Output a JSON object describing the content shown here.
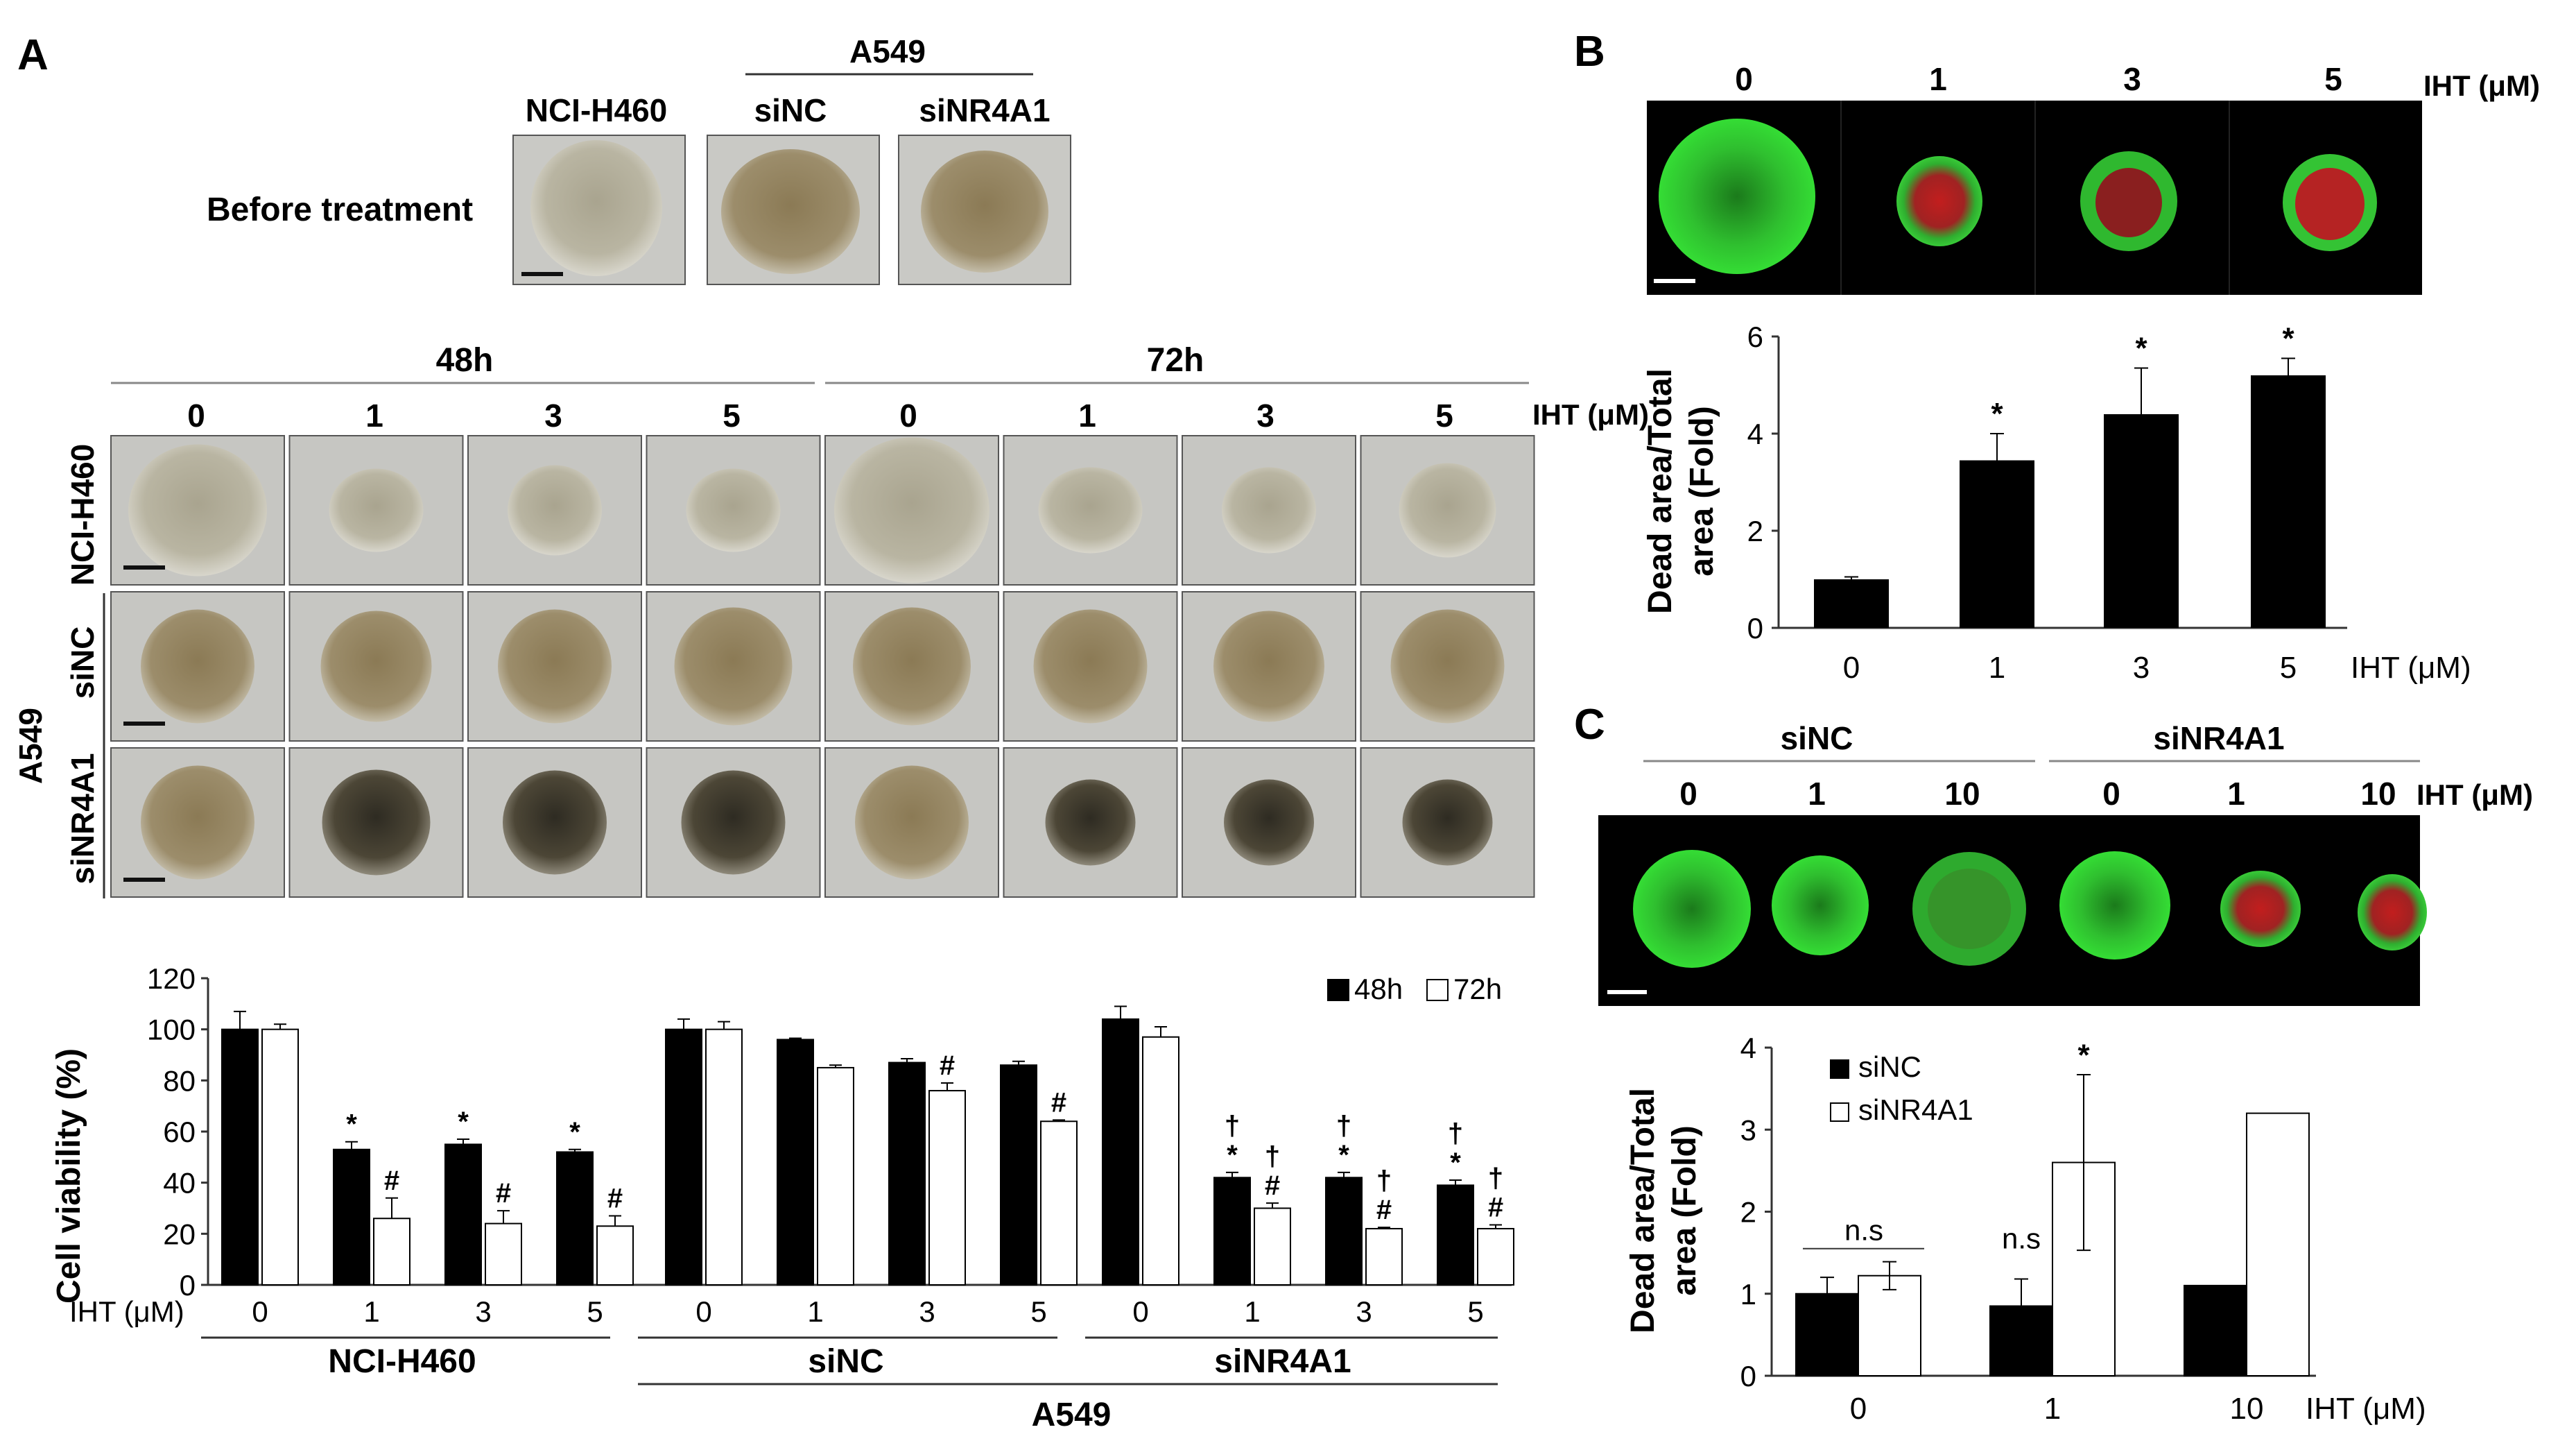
{
  "panels": {
    "A": {
      "letter": "A",
      "before_treatment": "Before treatment",
      "cell_lines": {
        "h460": "NCI-H460",
        "a549": "A549"
      },
      "si": {
        "nc": "siNC",
        "nr4a1": "siNR4A1"
      },
      "timepoints": [
        "48h",
        "72h"
      ],
      "doses": [
        "0",
        "1",
        "3",
        "5"
      ],
      "unit": "IHT (μM)",
      "row_labels": [
        "NCI-H460",
        "siNC",
        "siNR4A1"
      ],
      "legend": [
        "48h",
        "72h"
      ],
      "xprefix": "IHT (μM)",
      "group_labels": [
        "NCI-H460",
        "siNC",
        "siNR4A1"
      ],
      "outer_label": "A549"
    },
    "B": {
      "letter": "B",
      "doses": [
        "0",
        "1",
        "3",
        "5"
      ],
      "unit": "IHT (μM)"
    },
    "C": {
      "letter": "C",
      "groups": [
        "siNC",
        "siNR4A1"
      ],
      "doses": [
        "0",
        "1",
        "10",
        "0",
        "1",
        "10"
      ],
      "unit": "IHT (μM)"
    }
  },
  "chart_data": [
    {
      "type": "bar",
      "ylabel": "Cell viability (%)",
      "ylim": [
        0,
        120
      ],
      "yticks": [
        0,
        20,
        40,
        60,
        80,
        100,
        120
      ],
      "categories": [
        "0",
        "1",
        "3",
        "5",
        "0",
        "1",
        "3",
        "5",
        "0",
        "1",
        "3",
        "5"
      ],
      "groups": [
        "NCI-H460",
        "siNC",
        "siNR4A1"
      ],
      "series": [
        {
          "name": "48h",
          "color": "#000000",
          "values": [
            100,
            53,
            55,
            52,
            100,
            96,
            87,
            86,
            104,
            42,
            42,
            39
          ],
          "errors": [
            7,
            3,
            2,
            1,
            4,
            0.5,
            1.5,
            1.5,
            5,
            2,
            2,
            2
          ]
        },
        {
          "name": "72h",
          "color": "#ffffff",
          "values": [
            100,
            26,
            24,
            23,
            100,
            85,
            76,
            64,
            97,
            30,
            22,
            22
          ],
          "errors": [
            2,
            8,
            5,
            4,
            3,
            1,
            3,
            0.5,
            4,
            2,
            0.5,
            1.5
          ]
        }
      ],
      "annotations": {
        "48h": [
          "",
          "*",
          "*",
          "*",
          "",
          "",
          "",
          "",
          "",
          "†\n*",
          "†\n*",
          "†\n*"
        ],
        "72h": [
          "",
          "#",
          "#",
          "#",
          "",
          "",
          "#",
          "#",
          "",
          "†\n#",
          "†\n#",
          "†\n#"
        ]
      }
    },
    {
      "type": "bar",
      "ylabel": "Dead area/Total area (Fold)",
      "ylim": [
        0,
        6
      ],
      "yticks": [
        0,
        2,
        4,
        6
      ],
      "categories": [
        "0",
        "1",
        "3",
        "5"
      ],
      "xunit": "IHT (μM)",
      "series": [
        {
          "values": [
            1.0,
            3.45,
            4.4,
            5.2
          ],
          "errors": [
            0.05,
            0.55,
            0.95,
            0.35
          ]
        }
      ],
      "annotations": [
        "",
        "*",
        "*",
        "*"
      ]
    },
    {
      "type": "bar",
      "ylabel": "Dead area/Total area (Fold)",
      "ylim": [
        0,
        4
      ],
      "yticks": [
        0,
        1,
        2,
        3,
        4
      ],
      "categories": [
        "0",
        "1",
        "10"
      ],
      "xunit": "IHT (μM)",
      "series": [
        {
          "name": "siNC",
          "color": "#000000",
          "values": [
            1.0,
            0.85,
            1.1
          ],
          "errors": [
            0.2,
            0.33,
            0
          ]
        },
        {
          "name": "siNR4A1",
          "color": "#ffffff",
          "values": [
            1.22,
            2.6,
            3.2
          ],
          "errors": [
            0.17,
            1.07,
            0
          ]
        }
      ],
      "annotations": {
        "ns0": "n.s",
        "ns1": "n.s",
        "star": "*"
      }
    }
  ]
}
